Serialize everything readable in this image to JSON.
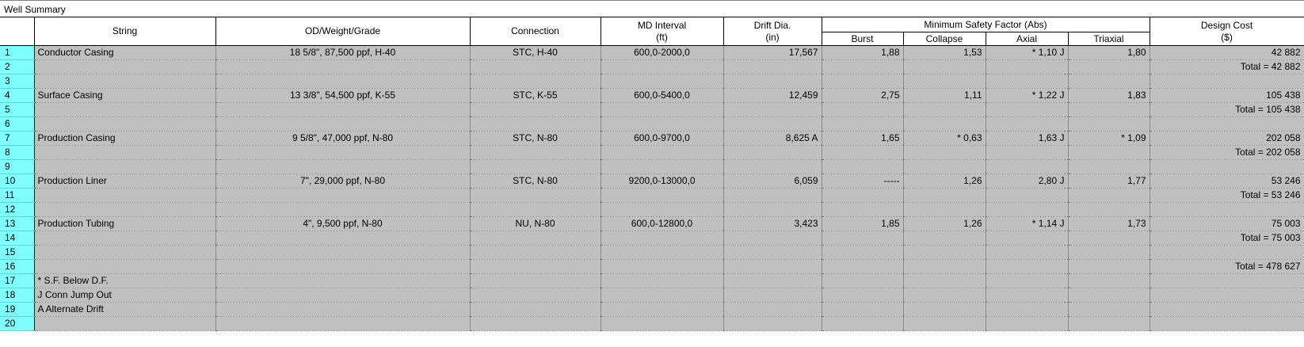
{
  "window": {
    "title": "Well Summary"
  },
  "headers": {
    "string": "String",
    "od_weight_grade": "OD/Weight/Grade",
    "connection": "Connection",
    "md_interval": "MD Interval",
    "md_interval_unit": "(ft)",
    "drift_dia": "Drift Dia.",
    "drift_dia_unit": "(in)",
    "min_sf_group": "Minimum Safety Factor (Abs)",
    "burst": "Burst",
    "collapse": "Collapse",
    "axial": "Axial",
    "triaxial": "Triaxial",
    "design_cost": "Design Cost",
    "design_cost_unit": "($)"
  },
  "rows": [
    {
      "num": "1",
      "string": "Conductor Casing",
      "odwg": "18 5/8\", 87,500 ppf, H-40",
      "conn": "STC, H-40",
      "md": "600,0-2000,0",
      "drift": "17,567",
      "burst": "1,88",
      "collapse": "1,53",
      "axial": "* 1,10 J",
      "triaxial": "1,80",
      "cost": "42 882"
    },
    {
      "num": "2",
      "string": "",
      "odwg": "",
      "conn": "",
      "md": "",
      "drift": "",
      "burst": "",
      "collapse": "",
      "axial": "",
      "triaxial": "",
      "cost": "Total = 42 882"
    },
    {
      "num": "3",
      "string": "",
      "odwg": "",
      "conn": "",
      "md": "",
      "drift": "",
      "burst": "",
      "collapse": "",
      "axial": "",
      "triaxial": "",
      "cost": ""
    },
    {
      "num": "4",
      "string": "Surface Casing",
      "odwg": "13 3/8\", 54,500 ppf, K-55",
      "conn": "STC, K-55",
      "md": "600,0-5400,0",
      "drift": "12,459",
      "burst": "2,75",
      "collapse": "1,11",
      "axial": "* 1,22 J",
      "triaxial": "1,83",
      "cost": "105 438"
    },
    {
      "num": "5",
      "string": "",
      "odwg": "",
      "conn": "",
      "md": "",
      "drift": "",
      "burst": "",
      "collapse": "",
      "axial": "",
      "triaxial": "",
      "cost": "Total = 105 438"
    },
    {
      "num": "6",
      "string": "",
      "odwg": "",
      "conn": "",
      "md": "",
      "drift": "",
      "burst": "",
      "collapse": "",
      "axial": "",
      "triaxial": "",
      "cost": ""
    },
    {
      "num": "7",
      "string": "Production Casing",
      "odwg": "9 5/8\", 47,000 ppf, N-80",
      "conn": "STC, N-80",
      "md": "600,0-9700,0",
      "drift": "8,625 A",
      "burst": "1,65",
      "collapse": "* 0,63",
      "axial": "1,63 J",
      "triaxial": "* 1,09",
      "cost": "202 058"
    },
    {
      "num": "8",
      "string": "",
      "odwg": "",
      "conn": "",
      "md": "",
      "drift": "",
      "burst": "",
      "collapse": "",
      "axial": "",
      "triaxial": "",
      "cost": "Total = 202 058"
    },
    {
      "num": "9",
      "string": "",
      "odwg": "",
      "conn": "",
      "md": "",
      "drift": "",
      "burst": "",
      "collapse": "",
      "axial": "",
      "triaxial": "",
      "cost": ""
    },
    {
      "num": "10",
      "string": "Production Liner",
      "odwg": "7\", 29,000 ppf, N-80",
      "conn": "STC, N-80",
      "md": "9200,0-13000,0",
      "drift": "6,059",
      "burst": "-----",
      "collapse": "1,26",
      "axial": "2,80 J",
      "triaxial": "1,77",
      "cost": "53 246"
    },
    {
      "num": "11",
      "string": "",
      "odwg": "",
      "conn": "",
      "md": "",
      "drift": "",
      "burst": "",
      "collapse": "",
      "axial": "",
      "triaxial": "",
      "cost": "Total = 53 246"
    },
    {
      "num": "12",
      "string": "",
      "odwg": "",
      "conn": "",
      "md": "",
      "drift": "",
      "burst": "",
      "collapse": "",
      "axial": "",
      "triaxial": "",
      "cost": ""
    },
    {
      "num": "13",
      "string": "Production Tubing",
      "odwg": "4\", 9,500 ppf, N-80",
      "conn": "NU, N-80",
      "md": "600,0-12800,0",
      "drift": "3,423",
      "burst": "1,85",
      "collapse": "1,26",
      "axial": "* 1,14 J",
      "triaxial": "1,73",
      "cost": "75 003"
    },
    {
      "num": "14",
      "string": "",
      "odwg": "",
      "conn": "",
      "md": "",
      "drift": "",
      "burst": "",
      "collapse": "",
      "axial": "",
      "triaxial": "",
      "cost": "Total = 75 003"
    },
    {
      "num": "15",
      "string": "",
      "odwg": "",
      "conn": "",
      "md": "",
      "drift": "",
      "burst": "",
      "collapse": "",
      "axial": "",
      "triaxial": "",
      "cost": ""
    },
    {
      "num": "16",
      "string": "",
      "odwg": "",
      "conn": "",
      "md": "",
      "drift": "",
      "burst": "",
      "collapse": "",
      "axial": "",
      "triaxial": "",
      "cost": "Total = 478 627"
    },
    {
      "num": "17",
      "string": "* S.F. Below D.F.",
      "odwg": "",
      "conn": "",
      "md": "",
      "drift": "",
      "burst": "",
      "collapse": "",
      "axial": "",
      "triaxial": "",
      "cost": ""
    },
    {
      "num": "18",
      "string": "J Conn Jump Out",
      "odwg": "",
      "conn": "",
      "md": "",
      "drift": "",
      "burst": "",
      "collapse": "",
      "axial": "",
      "triaxial": "",
      "cost": ""
    },
    {
      "num": "19",
      "string": "A Alternate Drift",
      "odwg": "",
      "conn": "",
      "md": "",
      "drift": "",
      "burst": "",
      "collapse": "",
      "axial": "",
      "triaxial": "",
      "cost": ""
    },
    {
      "num": "20",
      "string": "",
      "odwg": "",
      "conn": "",
      "md": "",
      "drift": "",
      "burst": "",
      "collapse": "",
      "axial": "",
      "triaxial": "",
      "cost": ""
    }
  ]
}
